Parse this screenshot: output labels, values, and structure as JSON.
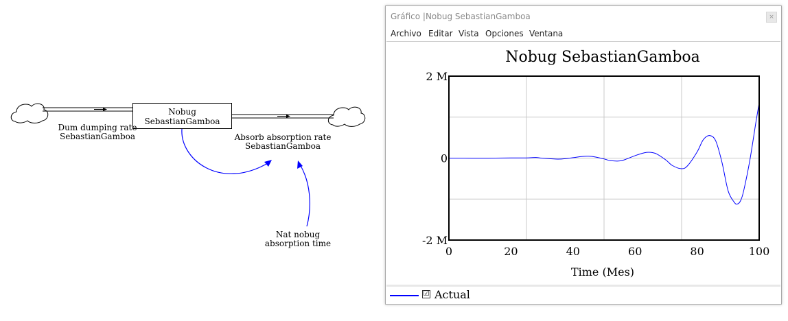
{
  "diagram": {
    "stock": {
      "line1": "Nobug",
      "line2": "SebastianGamboa"
    },
    "inflow": {
      "line1": "Dum dumping rate",
      "line2": "SebastianGamboa"
    },
    "outflow": {
      "line1": "Absorb absorption rate",
      "line2": "SebastianGamboa"
    },
    "aux": {
      "line1": "Nat nobug",
      "line2": "absorption time"
    },
    "colors": {
      "link": "#0000ff"
    }
  },
  "window": {
    "title": "Gráfico |Nobug SebastianGamboa",
    "close_icon": "close-icon",
    "menu": [
      "Archivo",
      "Editar",
      "Vista",
      "Opciones",
      "Ventana"
    ]
  },
  "legend": {
    "check": "☑",
    "label": "Actual",
    "color": "#0000ff"
  },
  "chart_data": {
    "type": "line",
    "title": "Nobug SebastianGamboa",
    "xlabel": "Time (Mes)",
    "ylabel": "",
    "xlim": [
      0,
      100
    ],
    "ylim": [
      -2000000,
      2000000
    ],
    "xticks": [
      0,
      20,
      40,
      60,
      80,
      100
    ],
    "yticks": [
      -2000000,
      0,
      2000000
    ],
    "xtick_labels": [
      "0",
      "20",
      "40",
      "60",
      "80",
      "100"
    ],
    "ytick_labels": [
      "-2 M",
      "0",
      "2 M"
    ],
    "grid": true,
    "series": [
      {
        "name": "Actual",
        "color": "#0000ff",
        "x": [
          0,
          5,
          10,
          15,
          20,
          25,
          28,
          30,
          35,
          38,
          40,
          43,
          45,
          47,
          50,
          52,
          55,
          57,
          60,
          63,
          65,
          67,
          70,
          72,
          75,
          77,
          80,
          82,
          84,
          86,
          88,
          90,
          92,
          93,
          94,
          95,
          97,
          99,
          100
        ],
        "y": [
          0,
          0,
          -2000,
          0,
          5000,
          5000,
          15000,
          0,
          -25000,
          -10000,
          10000,
          40000,
          45000,
          30000,
          -20000,
          -60000,
          -70000,
          -30000,
          60000,
          130000,
          140000,
          100000,
          -50000,
          -180000,
          -260000,
          -180000,
          150000,
          450000,
          550000,
          420000,
          -100000,
          -800000,
          -1080000,
          -1120000,
          -1040000,
          -800000,
          -50000,
          900000,
          1350000
        ]
      }
    ]
  }
}
